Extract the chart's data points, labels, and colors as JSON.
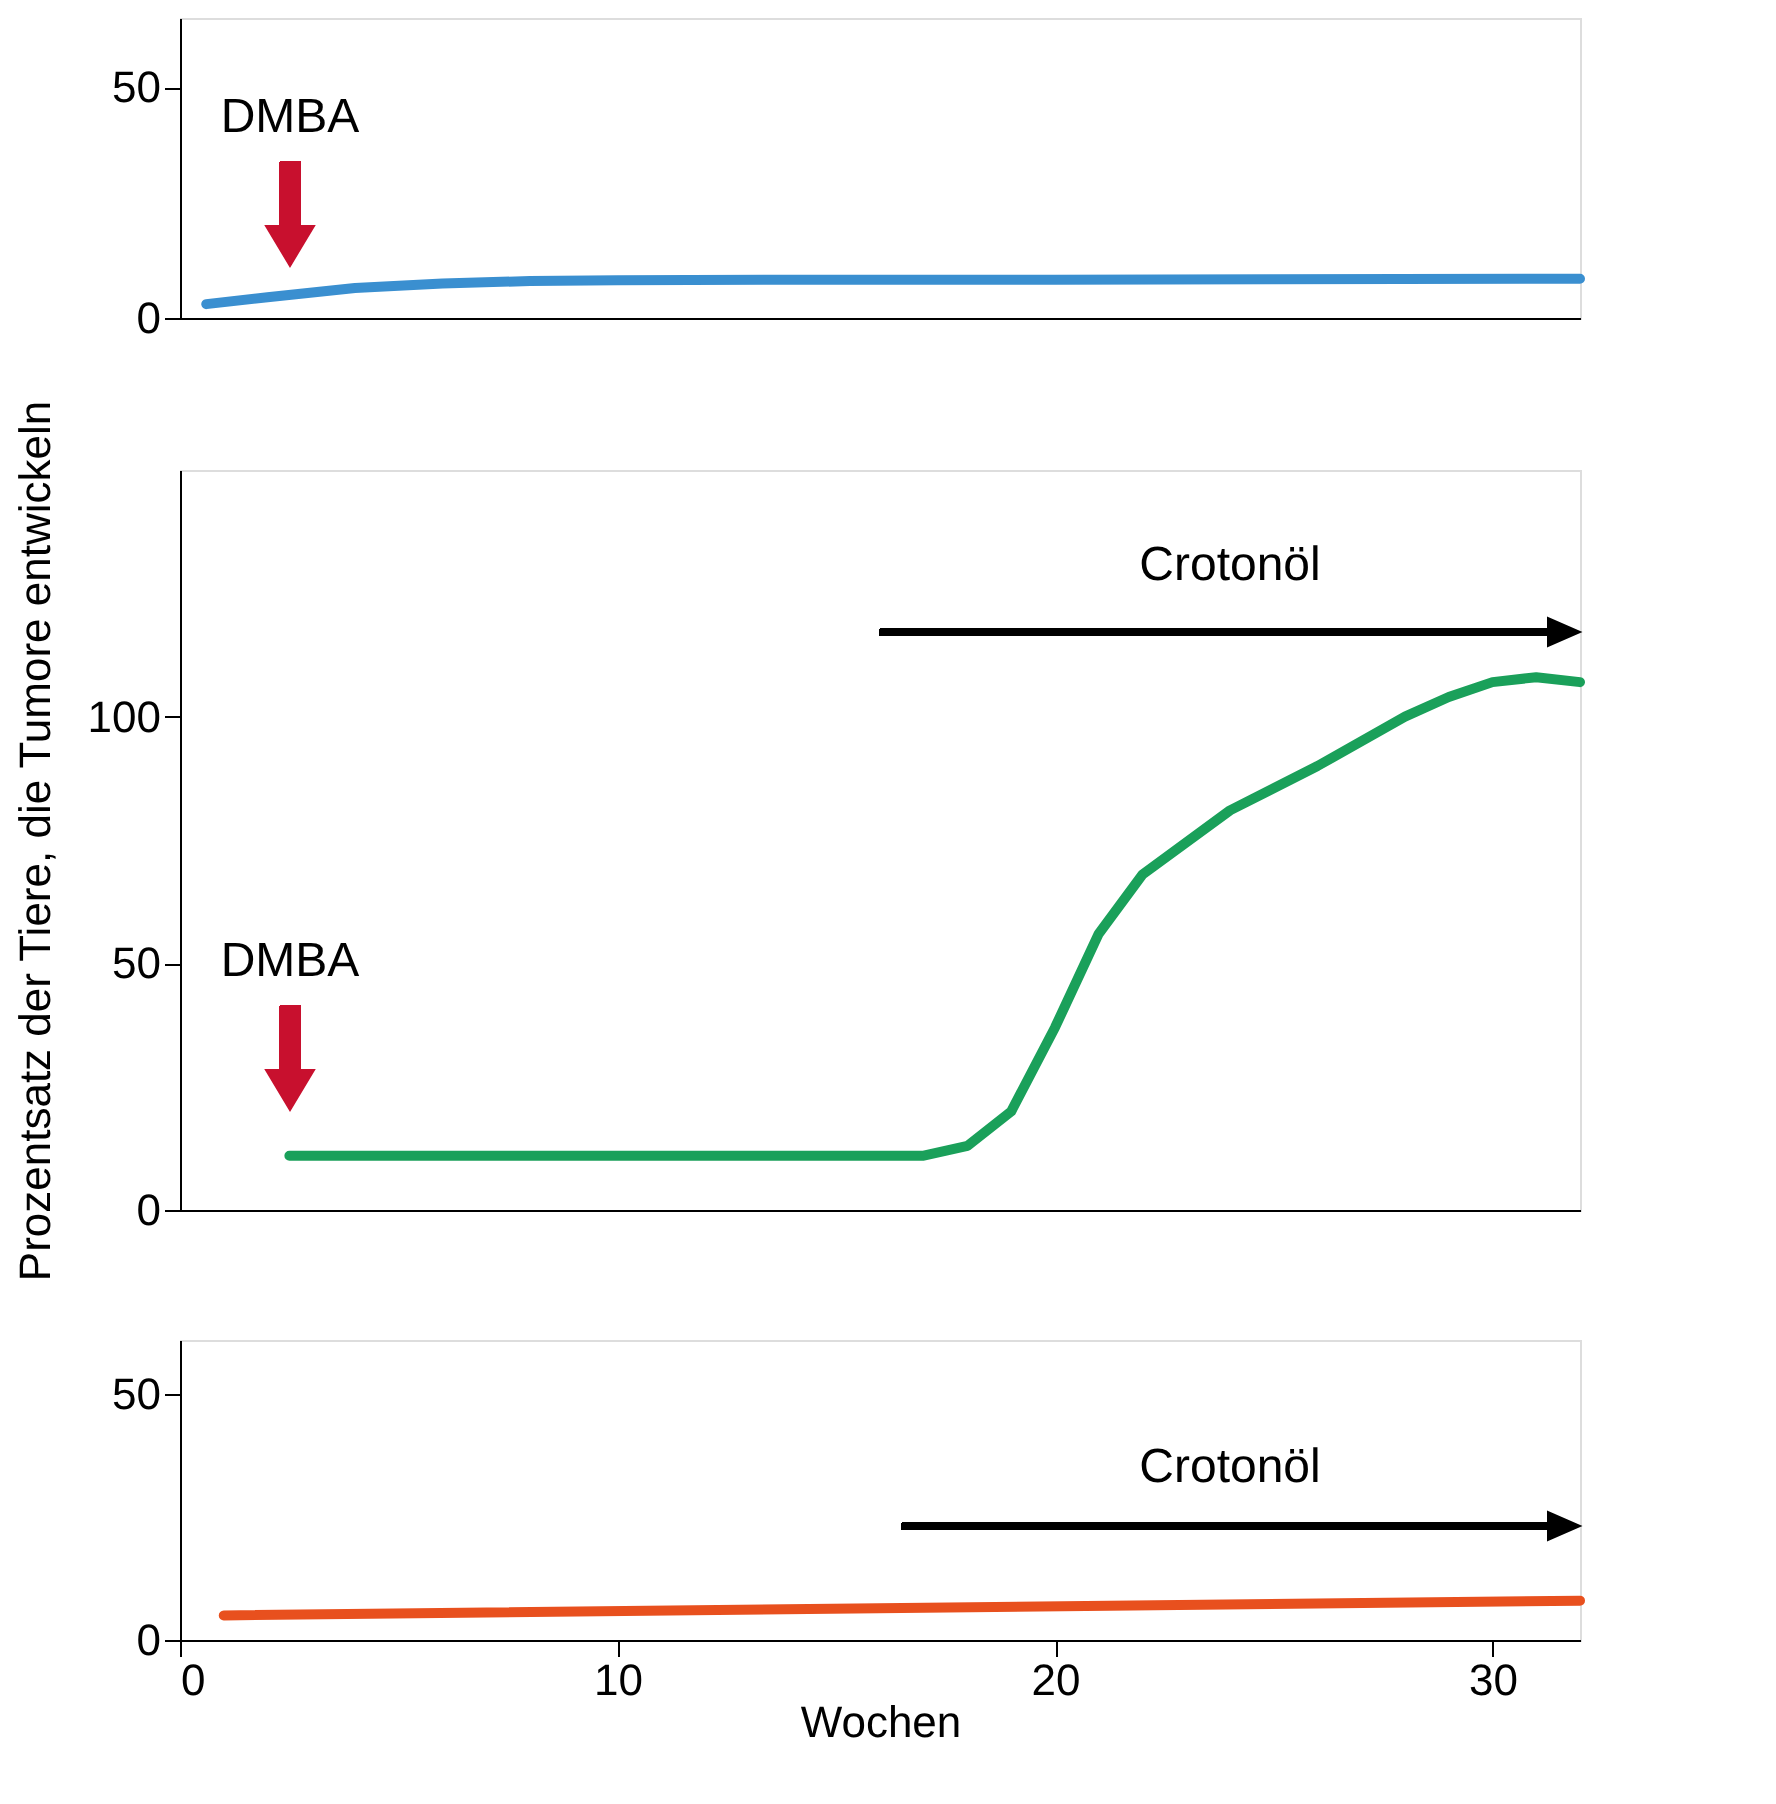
{
  "chart_data": [
    {
      "type": "line",
      "xlim": [
        0,
        32
      ],
      "xticks": [
        0,
        10,
        20,
        30
      ],
      "ylim": [
        0,
        65
      ],
      "yticks": [
        0,
        50
      ],
      "tick_labels": "y",
      "grid": false,
      "series": [
        {
          "color": "#3a8fd0",
          "x": [
            0.6,
            2,
            4,
            6,
            8,
            10,
            15,
            20,
            25,
            32
          ],
          "values": [
            3,
            4.5,
            6.5,
            7.5,
            8,
            8.2,
            8.3,
            8.3,
            8.4,
            8.5
          ]
        }
      ],
      "annotations": [
        "DMBA"
      ]
    },
    {
      "type": "line",
      "xlim": [
        0,
        32
      ],
      "xticks": [
        0,
        10,
        20,
        30
      ],
      "ylim": [
        0,
        150
      ],
      "yticks": [
        0,
        50,
        100
      ],
      "tick_labels": "y",
      "grid": false,
      "ylabel": "Prozentsatz der Tiere, die Tumore entwickeln",
      "series": [
        {
          "color": "#1aa05a",
          "x": [
            2.5,
            10,
            17,
            18,
            19,
            20,
            21,
            22,
            24,
            26,
            28,
            29,
            30,
            31,
            32
          ],
          "values": [
            11,
            11,
            11,
            13,
            20,
            37,
            56,
            68,
            81,
            90,
            100,
            104,
            107,
            108,
            107
          ]
        }
      ],
      "annotations": [
        "DMBA",
        "Crotonöl"
      ]
    },
    {
      "type": "line",
      "xlim": [
        0,
        32
      ],
      "xticks": [
        0,
        10,
        20,
        30
      ],
      "ylim": [
        0,
        61
      ],
      "yticks": [
        0,
        50
      ],
      "grid": false,
      "xlabel": "Wochen",
      "series": [
        {
          "color": "#e8501e",
          "x": [
            1,
            32
          ],
          "values": [
            5,
            8
          ]
        }
      ],
      "annotations": [
        "Crotonöl"
      ]
    }
  ]
}
